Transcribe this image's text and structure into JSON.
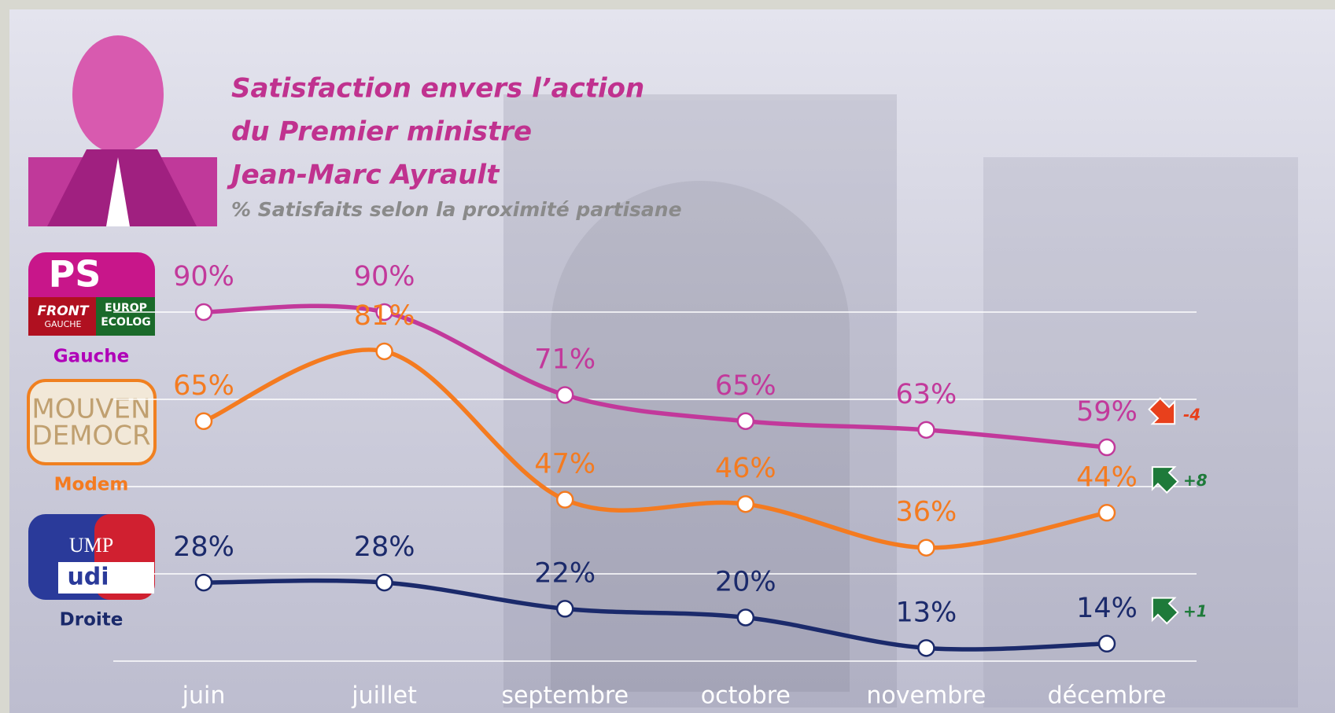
{
  "chart_data": {
    "type": "line",
    "title": [
      "Satisfaction envers l’action",
      "du Premier ministre",
      "Jean-Marc Ayrault"
    ],
    "subtitle": "% Satisfaits selon la proximité partisane",
    "categories": [
      "juin",
      "juillet",
      "septembre",
      "octobre",
      "novembre",
      "décembre"
    ],
    "ylim": [
      10,
      90
    ],
    "yticks": [
      10,
      30,
      50,
      70,
      90
    ],
    "grid": true,
    "series": [
      {
        "name": "Gauche",
        "color": "#c2399b",
        "name_color": "#b000b8",
        "values": [
          90,
          90,
          71,
          65,
          63,
          59
        ],
        "value_labels": [
          "90%",
          "90%",
          "71%",
          "65%",
          "63%",
          "59%"
        ],
        "change": {
          "value": -4,
          "label": "-4"
        },
        "change_color": "#e8401c",
        "logo": [
          "PS",
          "FRONT",
          "GAUCHE",
          "EUROP",
          "ECOLOG"
        ]
      },
      {
        "name": "Modem",
        "color": "#f47b20",
        "name_color": "#f47b20",
        "values": [
          65,
          81,
          47,
          46,
          36,
          44
        ],
        "value_labels": [
          "65%",
          "81%",
          "47%",
          "46%",
          "36%",
          "44%"
        ],
        "change": {
          "value": 8,
          "label": "+8"
        },
        "change_color": "#1e7a3a",
        "logo": [
          "MOUVEN",
          "DEMOCR"
        ]
      },
      {
        "name": "Droite",
        "color": "#1b2a6b",
        "name_color": "#1b2a6b",
        "values": [
          28,
          28,
          22,
          20,
          13,
          14
        ],
        "value_labels": [
          "28%",
          "28%",
          "22%",
          "20%",
          "13%",
          "14%"
        ],
        "change": {
          "value": 1,
          "label": "+1"
        },
        "change_color": "#1e7a3a",
        "logo": [
          "UMP",
          "udi"
        ]
      }
    ]
  }
}
